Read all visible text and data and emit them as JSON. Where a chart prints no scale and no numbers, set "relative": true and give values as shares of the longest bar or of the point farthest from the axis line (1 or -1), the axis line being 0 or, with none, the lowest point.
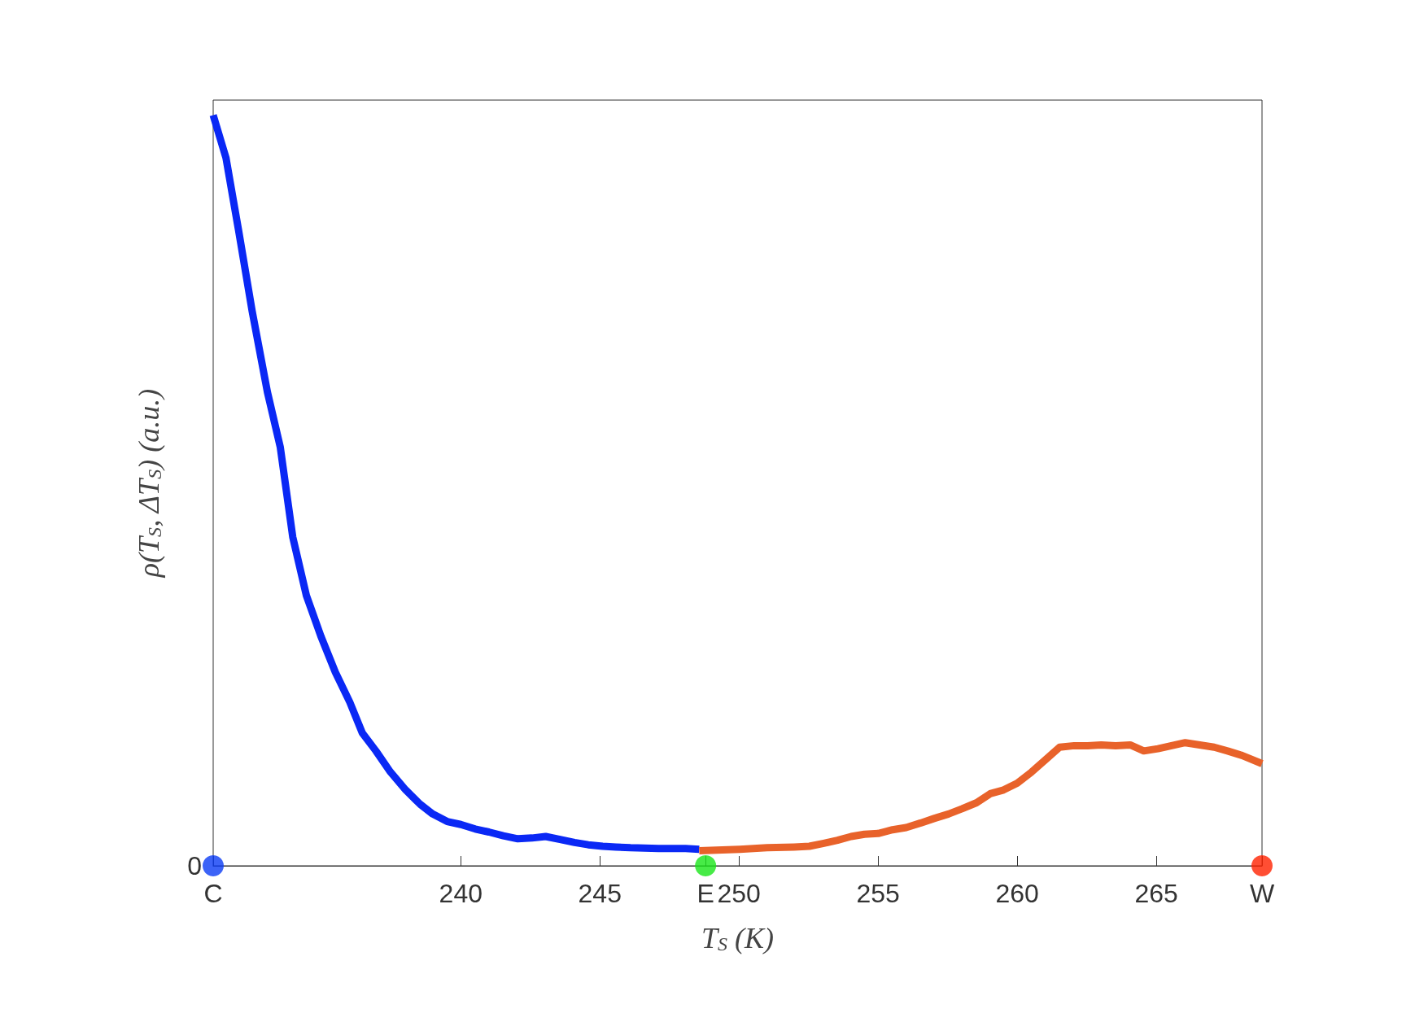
{
  "chart_data": {
    "type": "line",
    "relative": true,
    "xlabel": "T$_{S}$ (K)",
    "ylabel": "ρ(T$_{S}$, ΔT$_{S}$) (a.u.)",
    "xlim": [
      231.1,
      268.8
    ],
    "xticks": [
      {
        "value": 231.1,
        "label": "C"
      },
      240,
      245,
      {
        "value": 248.8,
        "label": "E"
      },
      250,
      255,
      260,
      265,
      {
        "value": 268.8,
        "label": "W"
      }
    ],
    "grid": false,
    "line_style": "solid",
    "marker": "none",
    "annotations": [
      {
        "text": "0",
        "x": 231.1,
        "y": 0
      }
    ],
    "series": [
      {
        "color": "#0a28f5",
        "x": [
          231.1,
          231.56,
          232.01,
          232.5,
          233.05,
          233.51,
          233.96,
          234.45,
          234.97,
          235.49,
          236.01,
          236.46,
          236.95,
          237.47,
          238.02,
          238.54,
          238.99,
          239.51,
          240.0,
          240.52,
          241.01,
          241.53,
          242.05,
          242.56,
          243.05,
          243.57,
          244.09,
          244.58,
          245.1,
          245.58,
          246.1,
          247.11,
          248.08,
          248.57
        ],
        "values": [
          1.0,
          0.943,
          0.847,
          0.739,
          0.631,
          0.558,
          0.438,
          0.36,
          0.306,
          0.258,
          0.218,
          0.177,
          0.153,
          0.125,
          0.101,
          0.082,
          0.069,
          0.059,
          0.055,
          0.049,
          0.045,
          0.04,
          0.036,
          0.037,
          0.039,
          0.035,
          0.031,
          0.028,
          0.026,
          0.025,
          0.024,
          0.023,
          0.023,
          0.022
        ]
      },
      {
        "color": "#e8622a",
        "x": [
          248.57,
          250.03,
          251.01,
          251.98,
          252.53,
          253.05,
          253.54,
          254.03,
          254.51,
          255.0,
          255.52,
          256.01,
          256.53,
          257.01,
          257.53,
          258.02,
          258.54,
          259.03,
          259.51,
          260.0,
          260.52,
          261.01,
          261.53,
          262.05,
          262.53,
          263.02,
          263.54,
          264.06,
          264.55,
          265.06,
          265.55,
          266.04,
          266.56,
          267.08,
          267.56,
          268.08,
          268.8
        ],
        "values": [
          0.02,
          0.022,
          0.024,
          0.025,
          0.026,
          0.03,
          0.034,
          0.039,
          0.042,
          0.043,
          0.048,
          0.051,
          0.057,
          0.063,
          0.069,
          0.076,
          0.084,
          0.096,
          0.101,
          0.11,
          0.125,
          0.141,
          0.158,
          0.16,
          0.16,
          0.161,
          0.16,
          0.161,
          0.153,
          0.156,
          0.16,
          0.164,
          0.161,
          0.158,
          0.153,
          0.147,
          0.136
        ]
      },
      {
        "type": "scatter",
        "marker": "circle",
        "x": [
          231.1,
          248.8,
          268.8
        ],
        "values": [
          0,
          0,
          0
        ],
        "colors": [
          "#0b3cf5",
          "#19e619",
          "#ff2200"
        ]
      }
    ]
  }
}
